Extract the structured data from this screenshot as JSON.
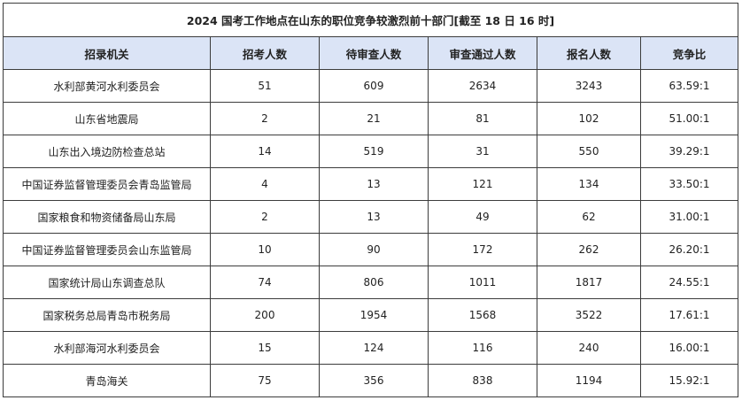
{
  "title": "2024 国考工作地点在山东的职位竞争较激烈前十部门[截至 18 日 16 时]",
  "columns": [
    "招录机关",
    "招考人数",
    "待审查人数",
    "审查通过人数",
    "报名人数",
    "竞争比"
  ],
  "rows": [
    [
      "水利部黄河水利委员会",
      "51",
      "609",
      "2634",
      "3243",
      "63.59:1"
    ],
    [
      "山东省地震局",
      "2",
      "21",
      "81",
      "102",
      "51.00:1"
    ],
    [
      "山东出入境边防检查总站",
      "14",
      "519",
      "31",
      "550",
      "39.29:1"
    ],
    [
      "中国证券监督管理委员会青岛监管局",
      "4",
      "13",
      "121",
      "134",
      "33.50:1"
    ],
    [
      "国家粮食和物资储备局山东局",
      "2",
      "13",
      "49",
      "62",
      "31.00:1"
    ],
    [
      "中国证券监督管理委员会山东监管局",
      "10",
      "90",
      "172",
      "262",
      "26.20:1"
    ],
    [
      "国家统计局山东调查总队",
      "74",
      "806",
      "1011",
      "1817",
      "24.55:1"
    ],
    [
      "国家税务总局青岛市税务局",
      "200",
      "1954",
      "1568",
      "3522",
      "17.61:1"
    ],
    [
      "水利部海河水利委员会",
      "15",
      "124",
      "116",
      "240",
      "16.00:1"
    ],
    [
      "青岛海关",
      "75",
      "356",
      "838",
      "1194",
      "15.92:1"
    ]
  ]
}
